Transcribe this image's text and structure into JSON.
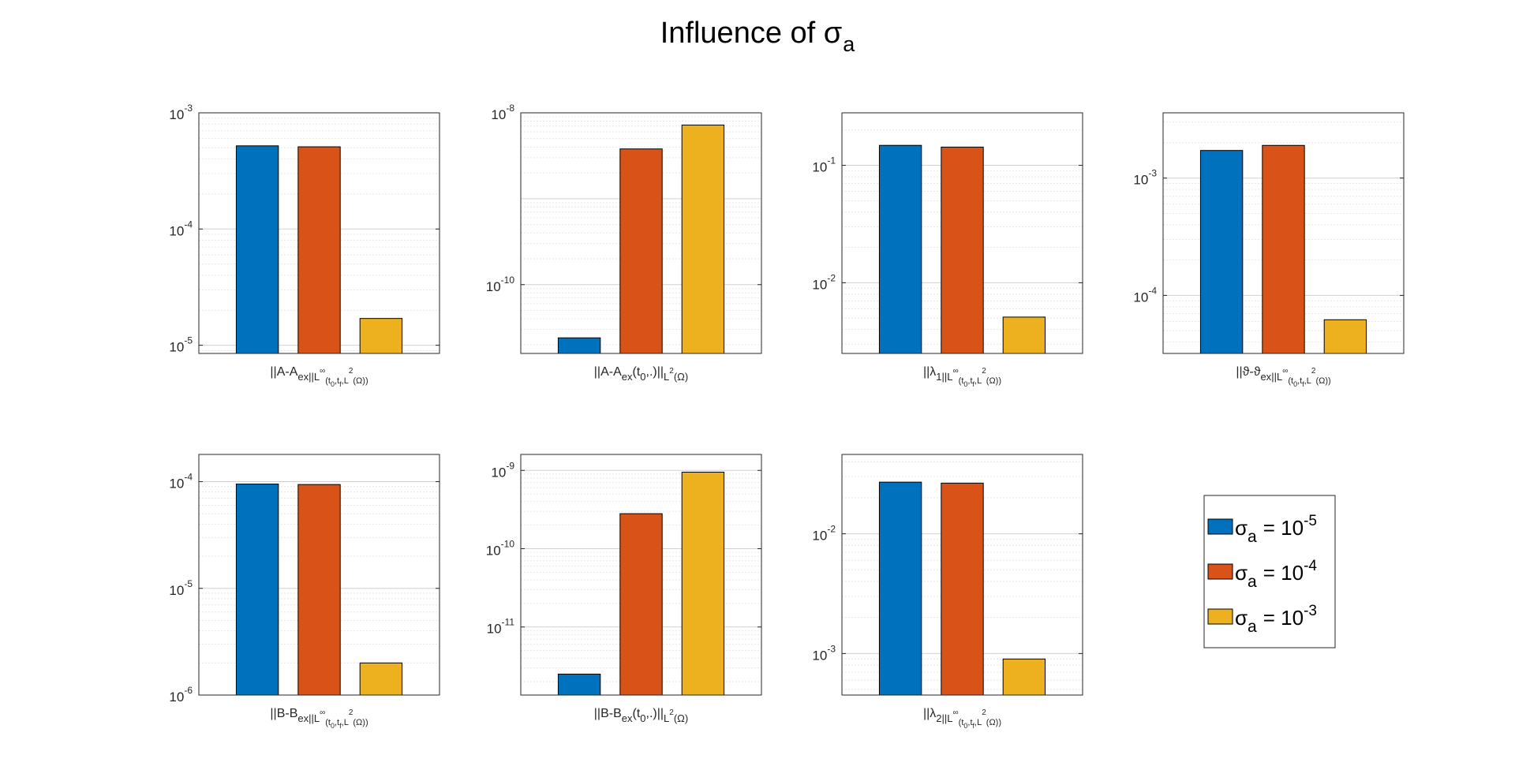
{
  "figure": {
    "title": "Influence of σ",
    "title_sub": "a"
  },
  "colors": [
    "#0072bd",
    "#d95319",
    "#edb120"
  ],
  "legend": {
    "placement": "bottom-right",
    "entries": [
      {
        "symbol": "σ",
        "sub": "a",
        "eq": "= 10",
        "exp": "-5"
      },
      {
        "symbol": "σ",
        "sub": "a",
        "eq": "= 10",
        "exp": "-4"
      },
      {
        "symbol": "σ",
        "sub": "a",
        "eq": "= 10",
        "exp": "-3"
      }
    ]
  },
  "chart_data": [
    {
      "type": "bar",
      "yscale": "log",
      "grid": true,
      "ylim": [
        8.5e-06,
        0.001
      ],
      "ticks": [
        {
          "base": "10",
          "exp": "-3",
          "value": 0.001
        },
        {
          "base": "10",
          "exp": "-4",
          "value": 0.0001
        },
        {
          "base": "10",
          "exp": "-5",
          "value": 1e-05
        }
      ],
      "values": [
        0.00052,
        0.00051,
        1.7e-05
      ],
      "xlabel": [
        {
          "t": "||A-A"
        },
        {
          "t": "ex",
          "s": "sub"
        },
        {
          "t": "||",
          "s": "sub"
        },
        {
          "t": "L",
          "s": "sub"
        },
        {
          "t": "∞",
          "s": "subsup"
        },
        {
          "t": "(t",
          "s": "subsub"
        },
        {
          "t": "0",
          "s": "subsubsub"
        },
        {
          "t": ",t",
          "s": "subsub"
        },
        {
          "t": "f",
          "s": "subsubsub"
        },
        {
          "t": ",L",
          "s": "subsub"
        },
        {
          "t": "2",
          "s": "subsup"
        },
        {
          "t": "(Ω))",
          "s": "subsub"
        }
      ]
    },
    {
      "type": "bar",
      "yscale": "log",
      "grid": true,
      "ylim": [
        1.58e-11,
        1e-08
      ],
      "ticks": [
        {
          "base": "10",
          "exp": "-8",
          "value": 1e-08
        },
        {
          "base": "10",
          "exp": "-10",
          "value": 1e-10
        }
      ],
      "values": [
        2.4e-11,
        3.8e-09,
        7.2e-09
      ],
      "xlabel": [
        {
          "t": "||A-A"
        },
        {
          "t": "ex",
          "s": "sub"
        },
        {
          "t": "(t"
        },
        {
          "t": "0",
          "s": "sub"
        },
        {
          "t": ",.)||"
        },
        {
          "t": "L",
          "s": "sub"
        },
        {
          "t": "2",
          "s": "subsup"
        },
        {
          "t": "(Ω)",
          "s": "sub"
        }
      ]
    },
    {
      "type": "bar",
      "yscale": "log",
      "grid": true,
      "ylim": [
        0.0025,
        0.28
      ],
      "ticks": [
        {
          "base": "10",
          "exp": "-1",
          "value": 0.1
        },
        {
          "base": "10",
          "exp": "-2",
          "value": 0.01
        }
      ],
      "values": [
        0.148,
        0.143,
        0.0051
      ],
      "xlabel": [
        {
          "t": "||λ"
        },
        {
          "t": "1",
          "s": "sub"
        },
        {
          "t": "||",
          "s": "sub"
        },
        {
          "t": "L",
          "s": "sub"
        },
        {
          "t": "∞",
          "s": "subsup"
        },
        {
          "t": "(t",
          "s": "subsub"
        },
        {
          "t": "0",
          "s": "subsubsub"
        },
        {
          "t": ",t",
          "s": "subsub"
        },
        {
          "t": "f",
          "s": "subsubsub"
        },
        {
          "t": ",L",
          "s": "subsub"
        },
        {
          "t": "2",
          "s": "subsup"
        },
        {
          "t": "(Ω))",
          "s": "subsub"
        }
      ]
    },
    {
      "type": "bar",
      "yscale": "log",
      "grid": true,
      "ylim": [
        3.2e-05,
        0.0036
      ],
      "ticks": [
        {
          "base": "10",
          "exp": "-3",
          "value": 0.001
        },
        {
          "base": "10",
          "exp": "-4",
          "value": 0.0001
        }
      ],
      "values": [
        0.00172,
        0.0019,
        6.2e-05
      ],
      "xlabel": [
        {
          "t": "||ϑ-ϑ"
        },
        {
          "t": "ex",
          "s": "sub"
        },
        {
          "t": "||",
          "s": "sub"
        },
        {
          "t": "L",
          "s": "sub"
        },
        {
          "t": "∞",
          "s": "subsup"
        },
        {
          "t": "(t",
          "s": "subsub"
        },
        {
          "t": "0",
          "s": "subsubsub"
        },
        {
          "t": ",t",
          "s": "subsub"
        },
        {
          "t": "f",
          "s": "subsubsub"
        },
        {
          "t": ",L",
          "s": "subsub"
        },
        {
          "t": "2",
          "s": "subsup"
        },
        {
          "t": "(Ω))",
          "s": "subsub"
        }
      ]
    },
    {
      "type": "bar",
      "yscale": "log",
      "grid": true,
      "ylim": [
        1e-06,
        0.00018
      ],
      "ticks": [
        {
          "base": "10",
          "exp": "-4",
          "value": 0.0001
        },
        {
          "base": "10",
          "exp": "-5",
          "value": 1e-05
        },
        {
          "base": "10",
          "exp": "-6",
          "value": 1e-06
        }
      ],
      "values": [
        9.5e-05,
        9.4e-05,
        2e-06
      ],
      "xlabel": [
        {
          "t": "||B-B"
        },
        {
          "t": "ex",
          "s": "sub"
        },
        {
          "t": "||",
          "s": "sub"
        },
        {
          "t": "L",
          "s": "sub"
        },
        {
          "t": "∞",
          "s": "subsup"
        },
        {
          "t": "(t",
          "s": "subsub"
        },
        {
          "t": "0",
          "s": "subsubsub"
        },
        {
          "t": ",t",
          "s": "subsub"
        },
        {
          "t": "f",
          "s": "subsubsub"
        },
        {
          "t": ",L",
          "s": "subsub"
        },
        {
          "t": "2",
          "s": "subsup"
        },
        {
          "t": "(Ω))",
          "s": "subsub"
        }
      ]
    },
    {
      "type": "bar",
      "yscale": "log",
      "grid": true,
      "ylim": [
        1.35e-12,
        1.6e-09
      ],
      "ticks": [
        {
          "base": "10",
          "exp": "-9",
          "value": 1e-09
        },
        {
          "base": "10",
          "exp": "-10",
          "value": 1e-10
        },
        {
          "base": "10",
          "exp": "-11",
          "value": 1e-11
        }
      ],
      "values": [
        2.5e-12,
        2.8e-10,
        9.5e-10
      ],
      "xlabel": [
        {
          "t": "||B-B"
        },
        {
          "t": "ex",
          "s": "sub"
        },
        {
          "t": "(t"
        },
        {
          "t": "0",
          "s": "sub"
        },
        {
          "t": ",.)||"
        },
        {
          "t": "L",
          "s": "sub"
        },
        {
          "t": "2",
          "s": "subsup"
        },
        {
          "t": "(Ω)",
          "s": "sub"
        }
      ]
    },
    {
      "type": "bar",
      "yscale": "log",
      "grid": true,
      "ylim": [
        0.00045,
        0.046
      ],
      "ticks": [
        {
          "base": "10",
          "exp": "-2",
          "value": 0.01
        },
        {
          "base": "10",
          "exp": "-3",
          "value": 0.001
        }
      ],
      "values": [
        0.027,
        0.0265,
        0.0009
      ],
      "xlabel": [
        {
          "t": "||λ"
        },
        {
          "t": "2",
          "s": "sub"
        },
        {
          "t": "||",
          "s": "sub"
        },
        {
          "t": "L",
          "s": "sub"
        },
        {
          "t": "∞",
          "s": "subsup"
        },
        {
          "t": "(t",
          "s": "subsub"
        },
        {
          "t": "0",
          "s": "subsubsub"
        },
        {
          "t": ",t",
          "s": "subsub"
        },
        {
          "t": "f",
          "s": "subsubsub"
        },
        {
          "t": ",L",
          "s": "subsub"
        },
        {
          "t": "2",
          "s": "subsup"
        },
        {
          "t": "(Ω))",
          "s": "subsub"
        }
      ]
    }
  ]
}
